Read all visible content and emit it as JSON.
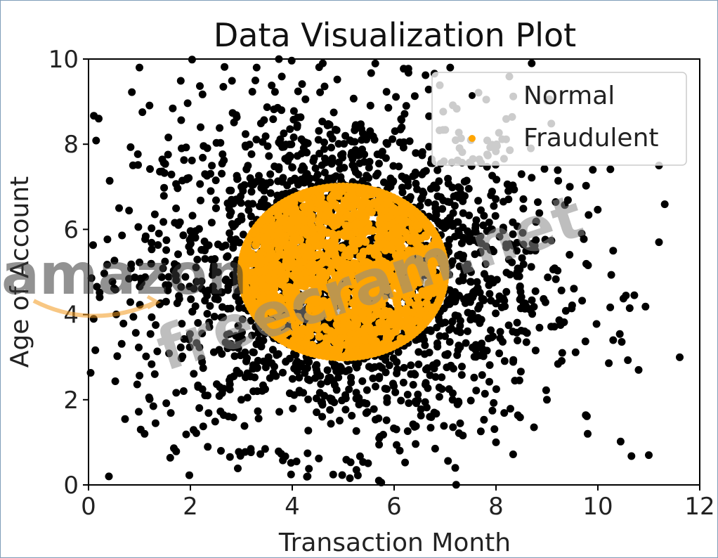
{
  "chart_data": {
    "type": "scatter",
    "title": "Data Visualization Plot",
    "xlabel": "Transaction Month",
    "ylabel": "Age of Account",
    "xlim": [
      0,
      12
    ],
    "ylim": [
      0,
      10
    ],
    "xticks": [
      "0",
      "2",
      "4",
      "6",
      "8",
      "10",
      "12"
    ],
    "yticks": [
      "0",
      "2",
      "4",
      "6",
      "8",
      "10"
    ],
    "grid": false,
    "legend_position": "top-right",
    "series": [
      {
        "name": "Normal",
        "color": "#000000",
        "distribution": {
          "center": [
            5,
            5
          ],
          "spread_sd": [
            2,
            2
          ],
          "n_points_approx": 2400
        },
        "sample_points": [
          [
            0.2,
            8.6
          ],
          [
            0.6,
            6.5
          ],
          [
            1.0,
            9.8
          ],
          [
            1.3,
            2.6
          ],
          [
            0.1,
            3.9
          ],
          [
            2.2,
            8.4
          ],
          [
            3.3,
            9.8
          ],
          [
            4.6,
            9.9
          ],
          [
            7.1,
            9.8
          ],
          [
            8.7,
            9.9
          ],
          [
            10.3,
            5.5
          ],
          [
            10.8,
            2.7
          ],
          [
            11.0,
            0.7
          ],
          [
            11.2,
            5.7
          ],
          [
            11.2,
            7.5
          ],
          [
            9.8,
            1.2
          ],
          [
            9.0,
            2.0
          ],
          [
            8.0,
            1.0
          ],
          [
            7.2,
            0.4
          ],
          [
            5.7,
            0.1
          ],
          [
            4.3,
            0.2
          ],
          [
            2.6,
            0.8
          ],
          [
            0.4,
            0.2
          ],
          [
            1.1,
            1.2
          ],
          [
            9.9,
            7.4
          ],
          [
            10.3,
            3.4
          ],
          [
            6.7,
            1.6
          ],
          [
            3.0,
            2.0
          ],
          [
            2.4,
            6.9
          ],
          [
            7.9,
            6.8
          ]
        ]
      },
      {
        "name": "Fraudulent",
        "color": "#ffa500",
        "distribution": {
          "center": [
            5,
            5
          ],
          "radius": 2
        },
        "sample_points": [
          [
            3.0,
            5.0
          ],
          [
            7.0,
            5.0
          ],
          [
            5.0,
            3.0
          ],
          [
            5.0,
            7.0
          ],
          [
            4.0,
            6.0
          ],
          [
            6.0,
            4.0
          ],
          [
            5.5,
            5.5
          ],
          [
            4.5,
            4.5
          ]
        ]
      }
    ]
  },
  "watermarks": {
    "brand": "amazon",
    "site": "freecram.net"
  }
}
